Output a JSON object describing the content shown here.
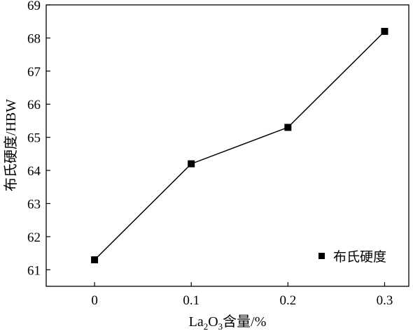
{
  "chart_data": {
    "type": "line",
    "x": [
      0,
      0.1,
      0.2,
      0.3
    ],
    "x_tick_labels": [
      "0",
      "0.1",
      "0.2",
      "0.3"
    ],
    "series": [
      {
        "name": "布氏硬度",
        "values": [
          61.3,
          64.2,
          65.3,
          68.2
        ],
        "marker": "square",
        "color": "#000000"
      }
    ],
    "y_ticks": [
      61,
      62,
      63,
      64,
      65,
      66,
      67,
      68,
      69
    ],
    "xlim": [
      -0.05,
      0.325
    ],
    "ylim": [
      60.5,
      69
    ],
    "xlabel": {
      "prefix": "La",
      "sub1": "2",
      "mid": "O",
      "sub2": "3",
      "suffix": "含量/%"
    },
    "ylabel": "布氏硬度/HBW",
    "legend_position": "bottom-right",
    "grid": false
  }
}
